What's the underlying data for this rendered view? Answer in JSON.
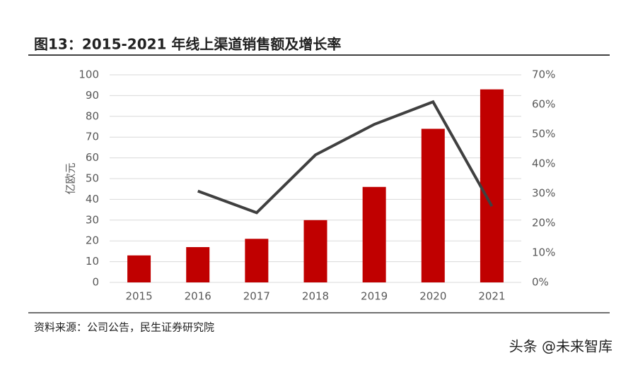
{
  "chart_data": {
    "type": "bar-line",
    "title": "图13：2015-2021 年线上渠道销售额及增长率",
    "y_label": "亿欧元",
    "source": "资料来源：公司公告，民生证券研究院",
    "watermark": "头条 @未来智库",
    "categories": [
      "2015",
      "2016",
      "2017",
      "2018",
      "2019",
      "2020",
      "2021"
    ],
    "series": [
      {
        "type": "bar",
        "color": "#c00000",
        "values": [
          13,
          17,
          21,
          30,
          46,
          74,
          93
        ]
      },
      {
        "type": "line",
        "axis": "y2",
        "color": "#404040",
        "values": [
          null,
          30.8,
          23.5,
          43,
          53.3,
          60.9,
          25.7
        ]
      }
    ],
    "ylim": [
      0,
      100
    ],
    "yticks": [
      0,
      10,
      20,
      30,
      40,
      50,
      60,
      70,
      80,
      90,
      100
    ],
    "y2lim": [
      0,
      70
    ],
    "y2ticks": [
      {
        "value": 0,
        "label": "0%"
      },
      {
        "value": 10,
        "label": "10%"
      },
      {
        "value": 20,
        "label": "20%"
      },
      {
        "value": 30,
        "label": "30%"
      },
      {
        "value": 40,
        "label": "40%"
      },
      {
        "value": 50,
        "label": "50%"
      },
      {
        "value": 60,
        "label": "60%"
      },
      {
        "value": 70,
        "label": "70%"
      }
    ],
    "grid": true
  }
}
